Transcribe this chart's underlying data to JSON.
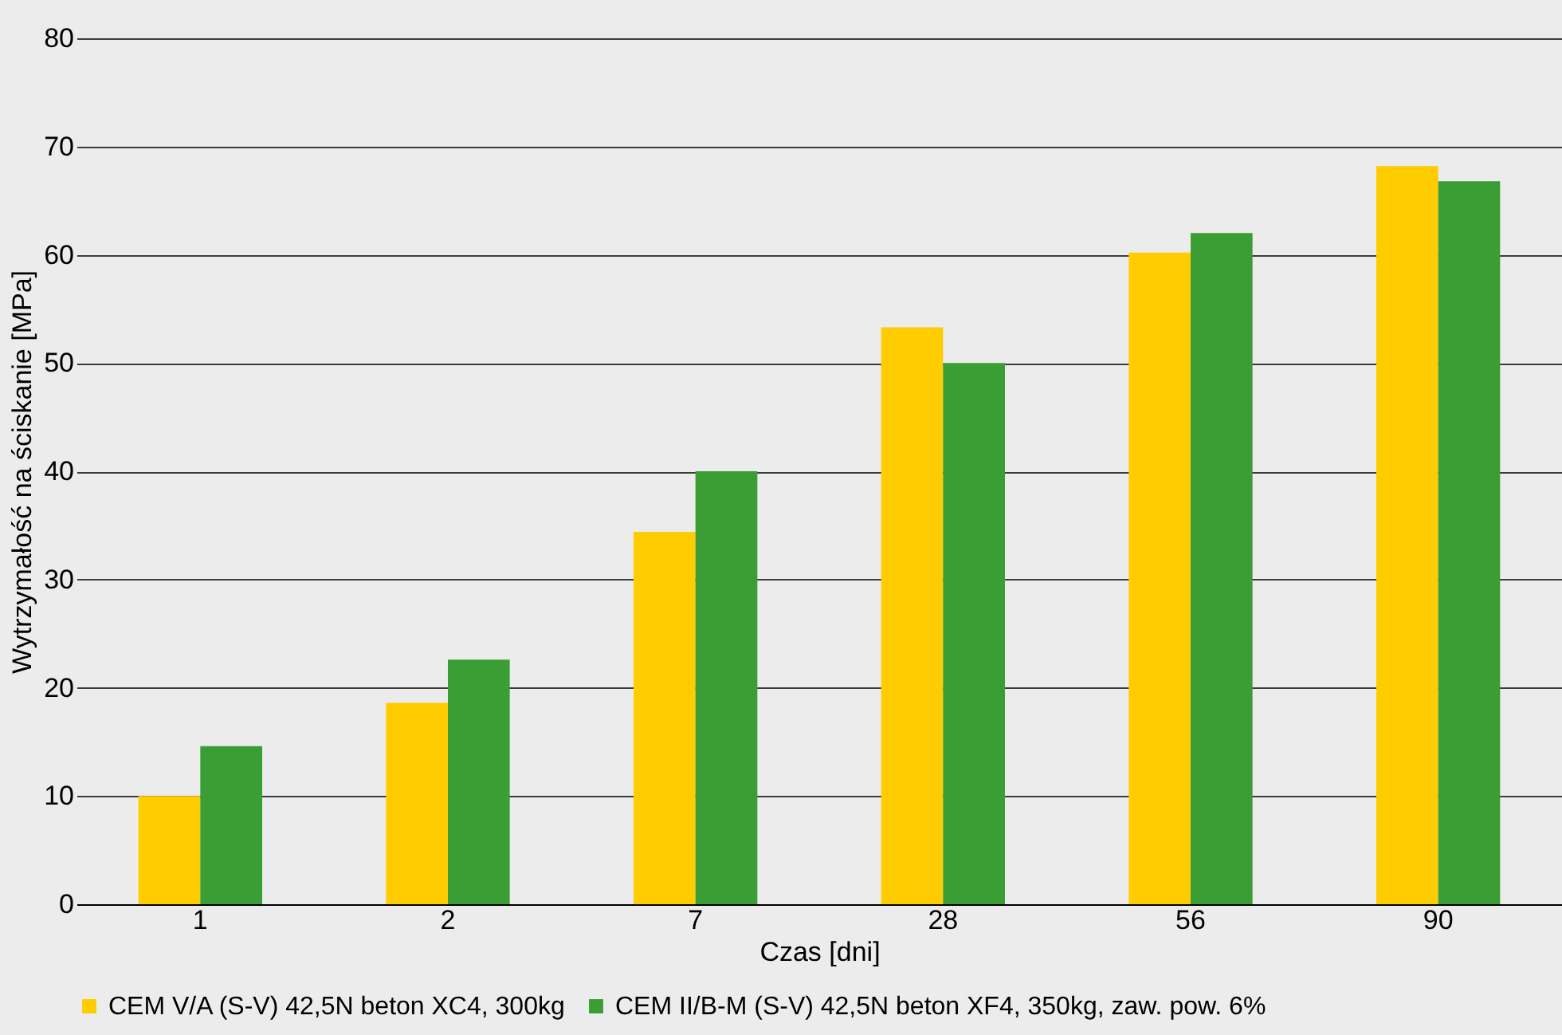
{
  "chart_data": {
    "type": "bar",
    "xlabel": "Czas [dni]",
    "ylabel": "Wytrzymałość na ściskanie [MPa]",
    "categories": [
      "1",
      "2",
      "7",
      "28",
      "56",
      "90"
    ],
    "series": [
      {
        "name": "CEM V/A (S-V) 42,5N beton XC4, 300kg",
        "color": "#ffcc00",
        "values": [
          10,
          18.6,
          34.4,
          53.3,
          60.2,
          68.2
        ]
      },
      {
        "name": "CEM II/B-M (S-V) 42,5N beton XF4, 350kg, zaw. pow. 6%",
        "color": "#3a9e35",
        "values": [
          14.6,
          22.6,
          40,
          50,
          62,
          66.8
        ]
      }
    ],
    "ylim": [
      0,
      80
    ],
    "yticks": [
      0,
      10,
      20,
      30,
      40,
      50,
      60,
      70,
      80
    ],
    "grid": "y",
    "legend": "bottom"
  }
}
